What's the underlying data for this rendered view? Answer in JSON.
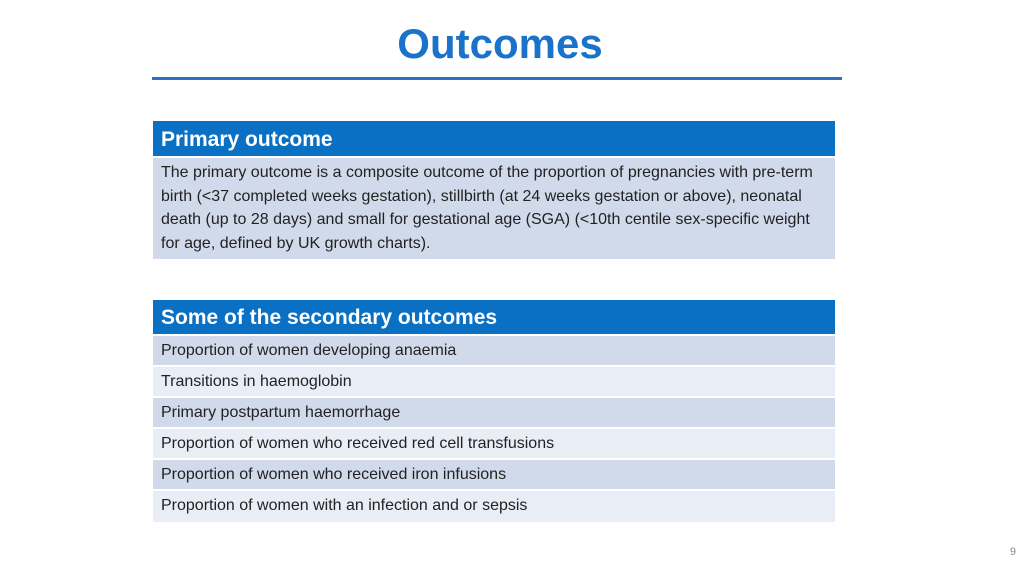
{
  "title": "Outcomes",
  "primary": {
    "header": "Primary outcome",
    "text": "The primary outcome is a composite outcome of the proportion of pregnancies with pre-term birth (<37 completed weeks gestation), stillbirth (at 24 weeks gestation or above), neonatal death (up to 28 days) and small for gestational age (SGA) (<10th centile sex-specific weight for age, defined by UK growth charts)."
  },
  "secondary": {
    "header": "Some of the secondary outcomes",
    "items": [
      "Proportion of women developing anaemia",
      "Transitions in haemoglobin",
      "Primary postpartum haemorrhage",
      "Proportion of women who received red cell transfusions",
      "Proportion of women who received iron infusions",
      "Proportion of women with an infection and or sepsis"
    ]
  },
  "page_number": "9",
  "colors": {
    "title": "#1a73c8",
    "header_bg": "#0a70c4",
    "row_dark": "#d0daeb",
    "row_light": "#e9edf6"
  }
}
